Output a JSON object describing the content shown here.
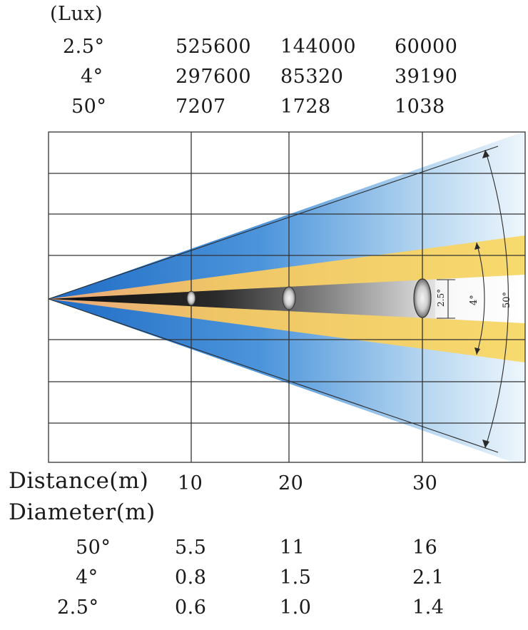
{
  "lux_header": "(Lux)",
  "lux_rows": [
    {
      "angle": "2.5°",
      "values": [
        "525600",
        "144000",
        "60000"
      ]
    },
    {
      "angle": "4°",
      "values": [
        "297600",
        "85320",
        "39190"
      ]
    },
    {
      "angle": "50°",
      "values": [
        "7207",
        "1728",
        "1038"
      ]
    }
  ],
  "beam_labels": [
    "2.5°",
    "4°",
    "50°"
  ],
  "distance_label": "Distance(m)",
  "distances": [
    "10",
    "20",
    "30"
  ],
  "diameter_label": "Diameter(m)",
  "diameter_rows": [
    {
      "angle": "50°",
      "values": [
        "5.5",
        "11",
        "16"
      ]
    },
    {
      "angle": "4°",
      "values": [
        "0.8",
        "1.5",
        "2.1"
      ]
    },
    {
      "angle": "2.5°",
      "values": [
        "0.6",
        "1.0",
        "1.4"
      ]
    }
  ],
  "colors": {
    "wide_beam": "#2f7fd0",
    "mid_beam": "#f1cf5a",
    "narrow_beam": "#1b1b1b",
    "grid": "#333333"
  }
}
